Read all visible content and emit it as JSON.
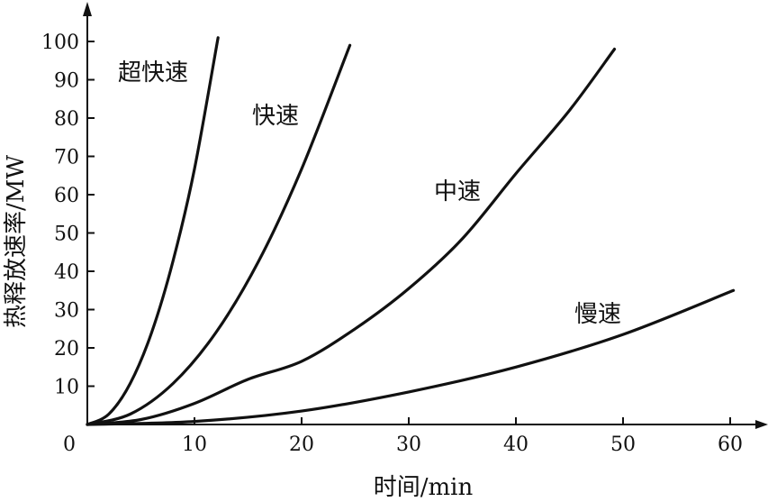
{
  "chart_data": {
    "type": "line",
    "xlabel": "时间/min",
    "ylabel": "热释放速率/MW",
    "origin_label": "0",
    "xlim": [
      0,
      63
    ],
    "ylim": [
      0,
      107
    ],
    "x_ticks": [
      10,
      20,
      30,
      40,
      50,
      60
    ],
    "y_ticks": [
      10,
      20,
      30,
      40,
      50,
      60,
      70,
      80,
      90,
      100
    ],
    "grid": false,
    "series": [
      {
        "name": "超快速",
        "x": [
          0,
          2,
          4,
          6,
          8,
          10,
          12.2
        ],
        "y": [
          0,
          2.7,
          10.7,
          24,
          42.7,
          66.7,
          101
        ]
      },
      {
        "name": "快速",
        "x": [
          0,
          4,
          8,
          12,
          16,
          20,
          24.5
        ],
        "y": [
          0,
          2.7,
          10.7,
          24,
          42.7,
          66.7,
          99
        ]
      },
      {
        "name": "中速",
        "x": [
          0,
          5,
          10,
          15,
          20,
          25,
          30,
          35,
          40,
          45,
          49.2
        ],
        "y": [
          0,
          1.3,
          5.5,
          11.8,
          16.5,
          25,
          35.5,
          48.5,
          65.5,
          82,
          98
        ]
      },
      {
        "name": "慢速",
        "x": [
          0,
          10,
          20,
          30,
          40,
          50,
          60.3
        ],
        "y": [
          0,
          0.8,
          3.5,
          8.5,
          15,
          23.5,
          35
        ]
      }
    ]
  }
}
